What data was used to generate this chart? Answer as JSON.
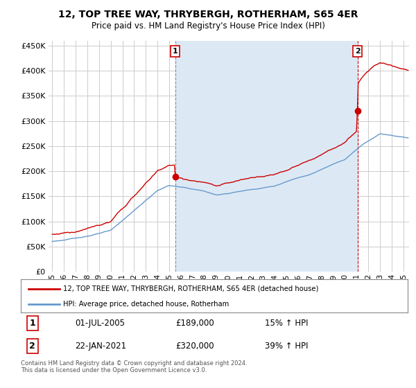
{
  "title": "12, TOP TREE WAY, THRYBERGH, ROTHERHAM, S65 4ER",
  "subtitle": "Price paid vs. HM Land Registry's House Price Index (HPI)",
  "ytick_vals": [
    0,
    50000,
    100000,
    150000,
    200000,
    250000,
    300000,
    350000,
    400000,
    450000
  ],
  "ylim": [
    0,
    460000
  ],
  "xlim_start": 1994.7,
  "xlim_end": 2025.5,
  "sale1_x": 2005.5,
  "sale1_y": 189000,
  "sale2_x": 2021.083,
  "sale2_y": 320000,
  "legend_line1": "12, TOP TREE WAY, THRYBERGH, ROTHERHAM, S65 4ER (detached house)",
  "legend_line2": "HPI: Average price, detached house, Rotherham",
  "table_row1": [
    "1",
    "01-JUL-2005",
    "£189,000",
    "15% ↑ HPI"
  ],
  "table_row2": [
    "2",
    "22-JAN-2021",
    "£320,000",
    "39% ↑ HPI"
  ],
  "footnote": "Contains HM Land Registry data © Crown copyright and database right 2024.\nThis data is licensed under the Open Government Licence v3.0.",
  "hpi_color": "#6699CC",
  "price_color": "#CC0000",
  "shade_color": "#DCE9F5",
  "bg_color": "#FFFFFF",
  "plot_bg_color": "#FFFFFF",
  "grid_color": "#CCCCCC",
  "xtick_years": [
    1995,
    1996,
    1997,
    1998,
    1999,
    2000,
    2001,
    2002,
    2003,
    2004,
    2005,
    2006,
    2007,
    2008,
    2009,
    2010,
    2011,
    2012,
    2013,
    2014,
    2015,
    2016,
    2017,
    2018,
    2019,
    2020,
    2021,
    2022,
    2023,
    2024,
    2025
  ]
}
